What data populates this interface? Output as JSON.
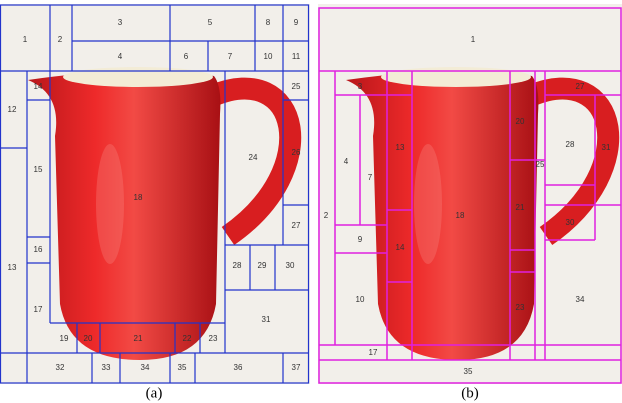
{
  "panels": [
    {
      "caption": "(a)",
      "labels": [
        "1",
        "2",
        "3",
        "4",
        "5",
        "6",
        "7",
        "8",
        "9",
        "10",
        "11",
        "12",
        "13",
        "14",
        "15",
        "16",
        "17",
        "18",
        "19",
        "20",
        "21",
        "22",
        "23",
        "24",
        "25",
        "26",
        "27",
        "28",
        "29",
        "30",
        "31",
        "32",
        "33",
        "34",
        "35",
        "36",
        "37"
      ]
    },
    {
      "caption": "(b)",
      "labels": [
        "1",
        "2",
        "3",
        "4",
        "7",
        "9",
        "10",
        "13",
        "14",
        "17",
        "18",
        "20",
        "21",
        "23",
        "25",
        "27",
        "28",
        "30",
        "31",
        "34",
        "35"
      ]
    }
  ]
}
